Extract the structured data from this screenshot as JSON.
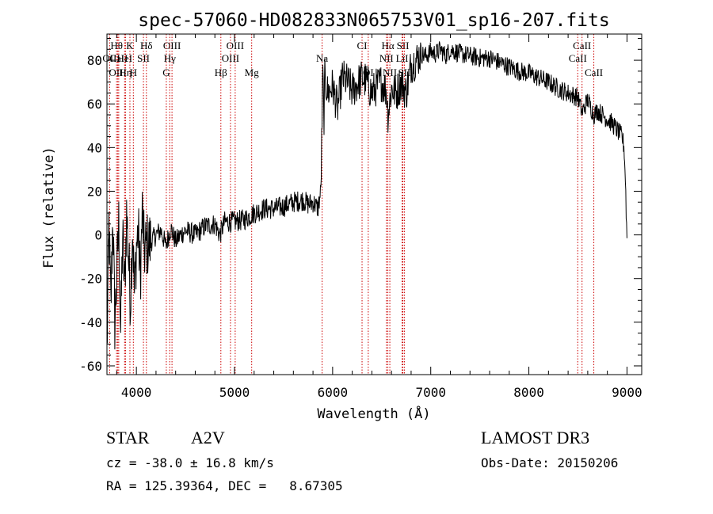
{
  "chart_data": {
    "type": "line",
    "title": "spec-57060-HD082833N065753V01_sp16-207.fits",
    "xlabel": "Wavelength (Å)",
    "ylabel": "Flux (relative)",
    "xlim": [
      3700,
      9150
    ],
    "ylim": [
      -64,
      92
    ],
    "xticks": [
      4000,
      5000,
      6000,
      7000,
      8000,
      9000
    ],
    "yticks": [
      -60,
      -40,
      -20,
      0,
      20,
      40,
      60,
      80
    ],
    "series": [
      {
        "name": "spectrum",
        "color": "#000000",
        "x": [
          3700,
          3720,
          3740,
          3760,
          3780,
          3800,
          3820,
          3840,
          3860,
          3880,
          3900,
          3920,
          3940,
          3960,
          3980,
          4000,
          4020,
          4040,
          4060,
          4080,
          4100,
          4150,
          4200,
          4250,
          4300,
          4350,
          4400,
          4450,
          4500,
          4600,
          4700,
          4800,
          4850,
          4900,
          5000,
          5100,
          5200,
          5300,
          5400,
          5500,
          5600,
          5700,
          5750,
          5800,
          5850,
          5880,
          5900,
          5910,
          5920,
          5950,
          6000,
          6050,
          6100,
          6150,
          6200,
          6250,
          6300,
          6350,
          6400,
          6450,
          6500,
          6550,
          6563,
          6600,
          6650,
          6700,
          6750,
          6800,
          6850,
          6900,
          6950,
          7000,
          7050,
          7100,
          7150,
          7200,
          7300,
          7400,
          7500,
          7600,
          7700,
          7800,
          7900,
          8000,
          8100,
          8200,
          8300,
          8400,
          8500,
          8542,
          8600,
          8662,
          8700,
          8750,
          8800,
          8850,
          8900,
          8950,
          8970,
          8985,
          8995,
          9000
        ],
        "y": [
          -55,
          5,
          -35,
          10,
          -40,
          -20,
          5,
          -45,
          0,
          -25,
          10,
          -10,
          -30,
          5,
          -28,
          -5,
          2,
          -20,
          10,
          -8,
          -5,
          -3,
          0,
          2,
          -5,
          3,
          -3,
          0,
          2,
          0,
          4,
          5,
          0,
          6,
          6,
          7,
          10,
          12,
          12,
          13,
          15,
          16,
          14,
          15,
          12,
          20,
          75,
          50,
          72,
          65,
          68,
          58,
          72,
          70,
          66,
          69,
          72,
          70,
          65,
          68,
          70,
          66,
          55,
          67,
          65,
          70,
          65,
          78,
          80,
          83,
          82,
          84,
          83,
          85,
          82,
          85,
          83,
          82,
          81,
          81,
          79,
          77,
          75,
          74,
          72,
          70,
          67,
          65,
          63,
          56,
          62,
          55,
          57,
          55,
          53,
          51,
          48,
          45,
          40,
          25,
          5,
          0
        ]
      }
    ],
    "lines": [
      {
        "label": "Hθ",
        "x": 3798,
        "row": 1
      },
      {
        "label": "OII",
        "x": 3727,
        "row": 2
      },
      {
        "label": "CaII",
        "x": 3820,
        "row": 2
      },
      {
        "label": "OIII",
        "x": 3810,
        "row": 3
      },
      {
        "label": "K",
        "x": 3934,
        "row": 1
      },
      {
        "label": "HeI",
        "x": 3880,
        "row": 2
      },
      {
        "label": "Hη",
        "x": 3889,
        "row": 3
      },
      {
        "label": "SII",
        "x": 4072,
        "row": 2
      },
      {
        "label": "H",
        "x": 3969,
        "row": 3
      },
      {
        "label": "Hδ",
        "x": 4102,
        "row": 1
      },
      {
        "label": "OIII",
        "x": 4363,
        "row": 1
      },
      {
        "label": "Hγ",
        "x": 4340,
        "row": 2
      },
      {
        "label": "G",
        "x": 4305,
        "row": 3
      },
      {
        "label": "Hβ",
        "x": 4861,
        "row": 3
      },
      {
        "label": "OIII",
        "x": 5007,
        "row": 1
      },
      {
        "label": "OIII",
        "x": 4959,
        "row": 2
      },
      {
        "label": "Mg",
        "x": 5175,
        "row": 3
      },
      {
        "label": "Na",
        "x": 5893,
        "row": 2
      },
      {
        "label": "CI",
        "x": 6300,
        "row": 1
      },
      {
        "label": "OI",
        "x": 6363,
        "row": 3
      },
      {
        "label": "Hα",
        "x": 6563,
        "row": 1
      },
      {
        "label": "NII",
        "x": 6548,
        "row": 2
      },
      {
        "label": "NII",
        "x": 6583,
        "row": 3
      },
      {
        "label": "SII",
        "x": 6716,
        "row": 1
      },
      {
        "label": "LiI",
        "x": 6708,
        "row": 2
      },
      {
        "label": "SII",
        "x": 6731,
        "row": 3
      },
      {
        "label": "CaII",
        "x": 8542,
        "row": 1
      },
      {
        "label": "CaII",
        "x": 8498,
        "row": 2
      },
      {
        "label": "CaII",
        "x": 8662,
        "row": 3
      }
    ]
  },
  "info": {
    "object_type": "STAR",
    "spectral_class": "A2V",
    "survey": "LAMOST DR3",
    "cz": "cz = -38.0 ± 16.8 km/s",
    "obs_date": "Obs-Date: 20150206",
    "coords": "RA = 125.39364, DEC =   8.67305"
  },
  "colors": {
    "spectrum": "#000000",
    "line_markers": "#cc0000",
    "axes": "#000000"
  }
}
